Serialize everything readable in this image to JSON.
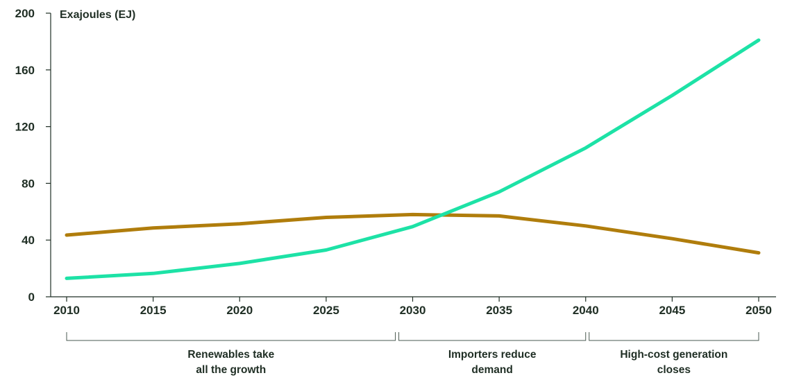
{
  "chart_data": {
    "type": "line",
    "ylabel": "Exajoules (EJ)",
    "x": [
      2010,
      2015,
      2020,
      2025,
      2030,
      2035,
      2040,
      2045,
      2050
    ],
    "xticks": [
      "2010",
      "2015",
      "2020",
      "2025",
      "2030",
      "2035",
      "2040",
      "2045",
      "2050"
    ],
    "yticks": [
      "0",
      "40",
      "80",
      "120",
      "160",
      "200"
    ],
    "ylim": [
      0,
      200
    ],
    "xlim": [
      2010,
      2050
    ],
    "grid": false,
    "series": [
      {
        "color": "#b07d0c",
        "values": [
          43.5,
          48.5,
          51.5,
          56,
          58,
          57,
          50,
          41,
          31
        ]
      },
      {
        "color": "#1de2a6",
        "values": [
          13,
          16.5,
          23.5,
          33,
          49.5,
          74,
          105,
          142,
          181
        ]
      }
    ],
    "phases": [
      {
        "start": 2010,
        "end": 2029,
        "label_lines": [
          "Renewables take",
          "all the growth"
        ]
      },
      {
        "start": 2029.2,
        "end": 2040,
        "label_lines": [
          "Importers reduce",
          "demand"
        ]
      },
      {
        "start": 2040.2,
        "end": 2050,
        "label_lines": [
          "High-cost generation",
          "closes"
        ]
      }
    ]
  }
}
